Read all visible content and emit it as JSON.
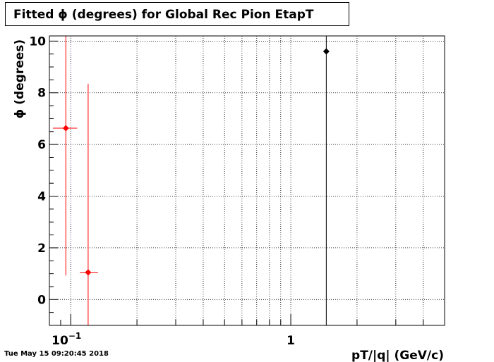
{
  "title": "Fitted ϕ (degrees) for Global Rec Pion EtapT",
  "timestamp": "Tue May 15 09:20:45 2018",
  "colors": {
    "series_red": "#ff0000",
    "series_black": "#000000",
    "grid": "#000000",
    "background": "#ffffff"
  },
  "chart_data": {
    "type": "scatter",
    "title": "Fitted ϕ (degrees) for Global Rec Pion EtapT",
    "xlabel": "pT/|q| (GeV/c)",
    "ylabel": "ϕ (degrees)",
    "x_scale": "log",
    "xlim": [
      0.08,
      5.0
    ],
    "ylim": [
      -1.0,
      10.2
    ],
    "grid": true,
    "x_ticks": [
      {
        "value": 0.1,
        "label": "10",
        "sup": "−1"
      },
      {
        "value": 1.0,
        "label": "1",
        "sup": ""
      }
    ],
    "y_ticks": [
      {
        "value": 0,
        "label": "0"
      },
      {
        "value": 2,
        "label": "2"
      },
      {
        "value": 4,
        "label": "4"
      },
      {
        "value": 6,
        "label": "6"
      },
      {
        "value": 8,
        "label": "8"
      },
      {
        "value": 10,
        "label": "10"
      }
    ],
    "series": [
      {
        "color": "#ff0000",
        "points": [
          {
            "x": 0.095,
            "y": 6.63,
            "xerr_low": 0.012,
            "xerr_high": 0.012,
            "yerr_low": 5.7,
            "yerr_high": 3.6
          },
          {
            "x": 0.12,
            "y": 1.05,
            "xerr_low": 0.01,
            "xerr_high": 0.013,
            "yerr_low": 2.05,
            "yerr_high": 7.3
          }
        ]
      },
      {
        "color": "#000000",
        "points": [
          {
            "x": 1.45,
            "y": 9.6,
            "xerr_low": 0,
            "xerr_high": 0,
            "yerr_low": 11.0,
            "yerr_high": 1.0
          }
        ]
      }
    ]
  }
}
